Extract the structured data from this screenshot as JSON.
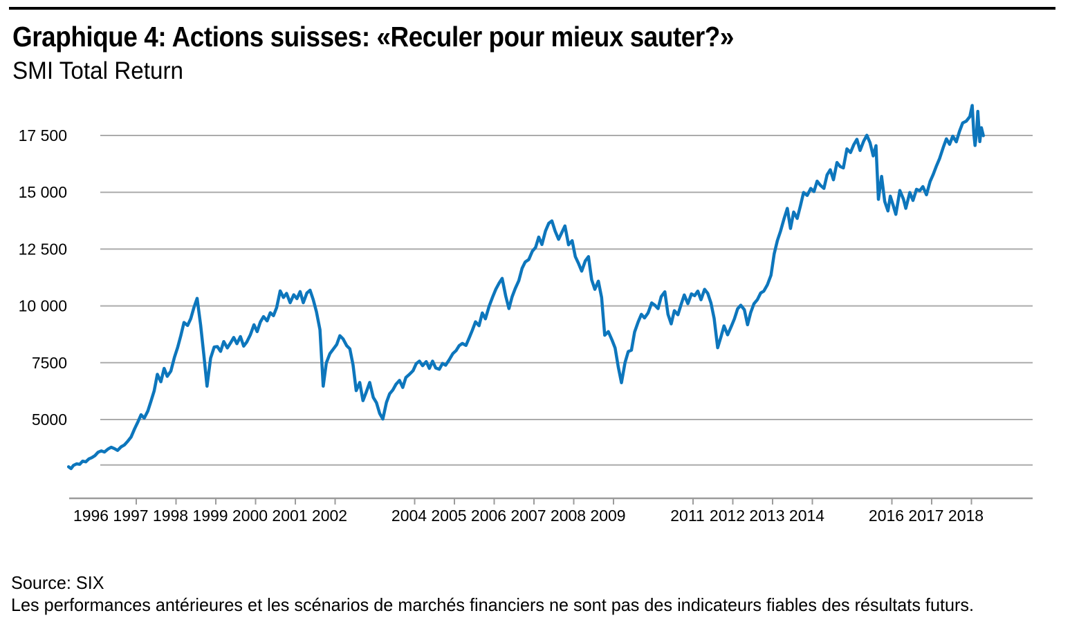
{
  "page": {
    "title": "Graphique 4: Actions suisses: «Reculer pour mieux sauter?»",
    "subtitle": "SMI Total Return",
    "source": "Source: SIX",
    "disclaimer": "Les performances antérieures et les scénarios de marchés financiers ne sont pas des indicateurs fiables des résultats futurs."
  },
  "chart_data": {
    "type": "line",
    "title": "Graphique 4: Actions suisses: «Reculer pour mieux sauter?»",
    "subtitle": "SMI Total Return",
    "xlabel": "",
    "ylabel": "",
    "legend": "none",
    "grid": "horizontal",
    "xlim": [
      1995.3,
      2019.5
    ],
    "ylim": [
      2500,
      19000
    ],
    "colors": {
      "line": "#0d76bc",
      "grid": "#ababab",
      "axis": "#9b9b9b",
      "rule": "#000000",
      "text": "#000000"
    },
    "y_axis": {
      "ticks": [
        {
          "v": 17500,
          "label": "17 500"
        },
        {
          "v": 15000,
          "label": "15 000"
        },
        {
          "v": 12500,
          "label": "12 500"
        },
        {
          "v": 10000,
          "label": "10 000"
        },
        {
          "v": 7500,
          "label": "7500"
        },
        {
          "v": 5000,
          "label": "5000"
        }
      ],
      "unlabeled_gridline": 3000
    },
    "x_axis": {
      "tick_years": [
        1997,
        1998,
        1999,
        2000,
        2001,
        2002,
        2004,
        2005,
        2006,
        2007,
        2008,
        2009,
        2011,
        2012,
        2013,
        2014,
        2016,
        2017,
        2018
      ],
      "label_years": [
        1996,
        1997,
        1998,
        1999,
        2000,
        2001,
        2002,
        2004,
        2005,
        2006,
        2007,
        2008,
        2009,
        2011,
        2012,
        2013,
        2014,
        2016,
        2017,
        2018
      ]
    },
    "series": [
      {
        "name": "SMI Total Return",
        "points": [
          [
            1995.3,
            2920
          ],
          [
            1995.36,
            2840
          ],
          [
            1995.42,
            2980
          ],
          [
            1995.5,
            3050
          ],
          [
            1995.58,
            3030
          ],
          [
            1995.65,
            3170
          ],
          [
            1995.73,
            3140
          ],
          [
            1995.81,
            3270
          ],
          [
            1995.88,
            3320
          ],
          [
            1995.96,
            3410
          ],
          [
            1996.04,
            3560
          ],
          [
            1996.12,
            3620
          ],
          [
            1996.2,
            3570
          ],
          [
            1996.29,
            3700
          ],
          [
            1996.37,
            3780
          ],
          [
            1996.45,
            3720
          ],
          [
            1996.53,
            3640
          ],
          [
            1996.62,
            3800
          ],
          [
            1996.7,
            3880
          ],
          [
            1996.78,
            4030
          ],
          [
            1996.87,
            4230
          ],
          [
            1996.96,
            4600
          ],
          [
            1997.04,
            4890
          ],
          [
            1997.12,
            5210
          ],
          [
            1997.2,
            5060
          ],
          [
            1997.29,
            5370
          ],
          [
            1997.37,
            5810
          ],
          [
            1997.45,
            6260
          ],
          [
            1997.53,
            6990
          ],
          [
            1997.62,
            6660
          ],
          [
            1997.7,
            7250
          ],
          [
            1997.78,
            6900
          ],
          [
            1997.87,
            7130
          ],
          [
            1997.96,
            7740
          ],
          [
            1998.04,
            8170
          ],
          [
            1998.12,
            8690
          ],
          [
            1998.2,
            9270
          ],
          [
            1998.29,
            9140
          ],
          [
            1998.37,
            9440
          ],
          [
            1998.45,
            9930
          ],
          [
            1998.53,
            10330
          ],
          [
            1998.62,
            9150
          ],
          [
            1998.7,
            7820
          ],
          [
            1998.78,
            6470
          ],
          [
            1998.87,
            7700
          ],
          [
            1998.96,
            8190
          ],
          [
            1999.04,
            8210
          ],
          [
            1999.12,
            8000
          ],
          [
            1999.2,
            8430
          ],
          [
            1999.29,
            8150
          ],
          [
            1999.37,
            8370
          ],
          [
            1999.45,
            8610
          ],
          [
            1999.53,
            8340
          ],
          [
            1999.62,
            8650
          ],
          [
            1999.7,
            8230
          ],
          [
            1999.78,
            8410
          ],
          [
            1999.87,
            8730
          ],
          [
            1999.96,
            9170
          ],
          [
            2000.04,
            8870
          ],
          [
            2000.12,
            9290
          ],
          [
            2000.2,
            9530
          ],
          [
            2000.29,
            9340
          ],
          [
            2000.37,
            9700
          ],
          [
            2000.45,
            9570
          ],
          [
            2000.53,
            9930
          ],
          [
            2000.62,
            10660
          ],
          [
            2000.7,
            10370
          ],
          [
            2000.78,
            10550
          ],
          [
            2000.87,
            10140
          ],
          [
            2000.96,
            10490
          ],
          [
            2001.04,
            10320
          ],
          [
            2001.12,
            10630
          ],
          [
            2001.2,
            10140
          ],
          [
            2001.29,
            10570
          ],
          [
            2001.37,
            10690
          ],
          [
            2001.45,
            10270
          ],
          [
            2001.53,
            9740
          ],
          [
            2001.62,
            8950
          ],
          [
            2001.7,
            6470
          ],
          [
            2001.78,
            7490
          ],
          [
            2001.87,
            7900
          ],
          [
            2001.96,
            8110
          ],
          [
            2002.04,
            8300
          ],
          [
            2002.12,
            8690
          ],
          [
            2002.2,
            8550
          ],
          [
            2002.29,
            8250
          ],
          [
            2002.37,
            8110
          ],
          [
            2002.45,
            7410
          ],
          [
            2002.53,
            6270
          ],
          [
            2002.62,
            6630
          ],
          [
            2002.7,
            5830
          ],
          [
            2002.78,
            6190
          ],
          [
            2002.87,
            6630
          ],
          [
            2002.96,
            5970
          ],
          [
            2003.04,
            5740
          ],
          [
            2003.12,
            5270
          ],
          [
            2003.2,
            5020
          ],
          [
            2003.29,
            5750
          ],
          [
            2003.37,
            6130
          ],
          [
            2003.45,
            6300
          ],
          [
            2003.53,
            6550
          ],
          [
            2003.62,
            6720
          ],
          [
            2003.7,
            6410
          ],
          [
            2003.78,
            6850
          ],
          [
            2003.87,
            6990
          ],
          [
            2003.96,
            7150
          ],
          [
            2004.04,
            7460
          ],
          [
            2004.12,
            7570
          ],
          [
            2004.2,
            7370
          ],
          [
            2004.29,
            7550
          ],
          [
            2004.37,
            7250
          ],
          [
            2004.45,
            7570
          ],
          [
            2004.53,
            7270
          ],
          [
            2004.62,
            7210
          ],
          [
            2004.7,
            7470
          ],
          [
            2004.78,
            7390
          ],
          [
            2004.87,
            7630
          ],
          [
            2004.96,
            7900
          ],
          [
            2005.04,
            8030
          ],
          [
            2005.12,
            8250
          ],
          [
            2005.2,
            8350
          ],
          [
            2005.29,
            8260
          ],
          [
            2005.37,
            8590
          ],
          [
            2005.45,
            8930
          ],
          [
            2005.53,
            9300
          ],
          [
            2005.62,
            9130
          ],
          [
            2005.7,
            9690
          ],
          [
            2005.78,
            9430
          ],
          [
            2005.87,
            9970
          ],
          [
            2005.96,
            10390
          ],
          [
            2006.04,
            10730
          ],
          [
            2006.12,
            10990
          ],
          [
            2006.2,
            11210
          ],
          [
            2006.29,
            10430
          ],
          [
            2006.37,
            9880
          ],
          [
            2006.45,
            10400
          ],
          [
            2006.53,
            10770
          ],
          [
            2006.62,
            11110
          ],
          [
            2006.7,
            11650
          ],
          [
            2006.78,
            11930
          ],
          [
            2006.87,
            12040
          ],
          [
            2006.96,
            12410
          ],
          [
            2007.04,
            12570
          ],
          [
            2007.12,
            13030
          ],
          [
            2007.2,
            12700
          ],
          [
            2007.29,
            13300
          ],
          [
            2007.37,
            13630
          ],
          [
            2007.45,
            13740
          ],
          [
            2007.53,
            13300
          ],
          [
            2007.62,
            12930
          ],
          [
            2007.7,
            13230
          ],
          [
            2007.78,
            13520
          ],
          [
            2007.87,
            12690
          ],
          [
            2007.96,
            12870
          ],
          [
            2008.04,
            12170
          ],
          [
            2008.12,
            11870
          ],
          [
            2008.2,
            11530
          ],
          [
            2008.29,
            11980
          ],
          [
            2008.37,
            12170
          ],
          [
            2008.45,
            11150
          ],
          [
            2008.53,
            10730
          ],
          [
            2008.62,
            11090
          ],
          [
            2008.7,
            10370
          ],
          [
            2008.78,
            8710
          ],
          [
            2008.87,
            8870
          ],
          [
            2008.96,
            8510
          ],
          [
            2009.04,
            8150
          ],
          [
            2009.12,
            7310
          ],
          [
            2009.2,
            6620
          ],
          [
            2009.29,
            7510
          ],
          [
            2009.37,
            7990
          ],
          [
            2009.45,
            8050
          ],
          [
            2009.53,
            8850
          ],
          [
            2009.62,
            9290
          ],
          [
            2009.7,
            9630
          ],
          [
            2009.78,
            9470
          ],
          [
            2009.87,
            9690
          ],
          [
            2009.96,
            10130
          ],
          [
            2010.04,
            10030
          ],
          [
            2010.12,
            9880
          ],
          [
            2010.2,
            10410
          ],
          [
            2010.29,
            10620
          ],
          [
            2010.37,
            9630
          ],
          [
            2010.45,
            9210
          ],
          [
            2010.53,
            9790
          ],
          [
            2010.62,
            9610
          ],
          [
            2010.7,
            10070
          ],
          [
            2010.78,
            10480
          ],
          [
            2010.87,
            10100
          ],
          [
            2010.96,
            10530
          ],
          [
            2011.04,
            10450
          ],
          [
            2011.12,
            10650
          ],
          [
            2011.2,
            10270
          ],
          [
            2011.29,
            10730
          ],
          [
            2011.37,
            10550
          ],
          [
            2011.45,
            10130
          ],
          [
            2011.53,
            9450
          ],
          [
            2011.62,
            8160
          ],
          [
            2011.7,
            8630
          ],
          [
            2011.78,
            9120
          ],
          [
            2011.87,
            8730
          ],
          [
            2011.96,
            9090
          ],
          [
            2012.04,
            9430
          ],
          [
            2012.12,
            9870
          ],
          [
            2012.2,
            10030
          ],
          [
            2012.29,
            9830
          ],
          [
            2012.37,
            9170
          ],
          [
            2012.45,
            9710
          ],
          [
            2012.53,
            10090
          ],
          [
            2012.62,
            10280
          ],
          [
            2012.7,
            10570
          ],
          [
            2012.78,
            10650
          ],
          [
            2012.87,
            10930
          ],
          [
            2012.96,
            11350
          ],
          [
            2013.04,
            12290
          ],
          [
            2013.12,
            12870
          ],
          [
            2013.2,
            13290
          ],
          [
            2013.29,
            13850
          ],
          [
            2013.37,
            14290
          ],
          [
            2013.45,
            13410
          ],
          [
            2013.53,
            14130
          ],
          [
            2013.62,
            13850
          ],
          [
            2013.7,
            14410
          ],
          [
            2013.78,
            14990
          ],
          [
            2013.87,
            14860
          ],
          [
            2013.96,
            15170
          ],
          [
            2014.04,
            15030
          ],
          [
            2014.12,
            15490
          ],
          [
            2014.2,
            15310
          ],
          [
            2014.29,
            15170
          ],
          [
            2014.37,
            15770
          ],
          [
            2014.45,
            15990
          ],
          [
            2014.53,
            15550
          ],
          [
            2014.62,
            16310
          ],
          [
            2014.7,
            16130
          ],
          [
            2014.78,
            16070
          ],
          [
            2014.87,
            16910
          ],
          [
            2014.96,
            16750
          ],
          [
            2015.04,
            17090
          ],
          [
            2015.12,
            17330
          ],
          [
            2015.2,
            16840
          ],
          [
            2015.29,
            17250
          ],
          [
            2015.37,
            17510
          ],
          [
            2015.45,
            17180
          ],
          [
            2015.53,
            16600
          ],
          [
            2015.6,
            17050
          ],
          [
            2015.66,
            14690
          ],
          [
            2015.74,
            15700
          ],
          [
            2015.82,
            14600
          ],
          [
            2015.9,
            14180
          ],
          [
            2015.96,
            14830
          ],
          [
            2016.04,
            14380
          ],
          [
            2016.1,
            14030
          ],
          [
            2016.2,
            15080
          ],
          [
            2016.29,
            14700
          ],
          [
            2016.35,
            14290
          ],
          [
            2016.45,
            14990
          ],
          [
            2016.53,
            14640
          ],
          [
            2016.62,
            15130
          ],
          [
            2016.7,
            15070
          ],
          [
            2016.78,
            15250
          ],
          [
            2016.87,
            14890
          ],
          [
            2016.96,
            15470
          ],
          [
            2017.04,
            15790
          ],
          [
            2017.12,
            16160
          ],
          [
            2017.2,
            16490
          ],
          [
            2017.29,
            16970
          ],
          [
            2017.37,
            17350
          ],
          [
            2017.45,
            17110
          ],
          [
            2017.53,
            17470
          ],
          [
            2017.62,
            17220
          ],
          [
            2017.7,
            17690
          ],
          [
            2017.78,
            18050
          ],
          [
            2017.87,
            18130
          ],
          [
            2017.96,
            18330
          ],
          [
            2018.02,
            18820
          ],
          [
            2018.06,
            17600
          ],
          [
            2018.09,
            17060
          ],
          [
            2018.13,
            17640
          ],
          [
            2018.16,
            18560
          ],
          [
            2018.21,
            17230
          ],
          [
            2018.25,
            17840
          ],
          [
            2018.3,
            17490
          ]
        ]
      }
    ]
  }
}
